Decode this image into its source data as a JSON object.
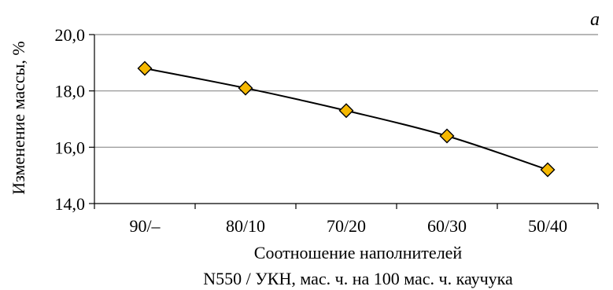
{
  "panel_label": "a",
  "chart_data": {
    "type": "line",
    "categories": [
      "90/–",
      "80/10",
      "70/20",
      "60/30",
      "50/40"
    ],
    "series": [
      {
        "values": [
          18.8,
          18.1,
          17.3,
          16.4,
          15.2
        ]
      }
    ],
    "ylabel": "Изменение массы, %",
    "xlabel": [
      "Соотношение наполнителей",
      "N550 / УКН, мас. ч. на 100 мас. ч. каучука"
    ],
    "ylim": [
      14.0,
      20.0
    ],
    "yticks": [
      "14,0",
      "16,0",
      "18,0",
      "20,0"
    ],
    "ytick_values": [
      14.0,
      16.0,
      18.0,
      20.0
    ],
    "grid": "horizontal",
    "marker": "diamond",
    "marker_color": "#F5B800",
    "line_color": "#000000",
    "trend": "smooth"
  }
}
